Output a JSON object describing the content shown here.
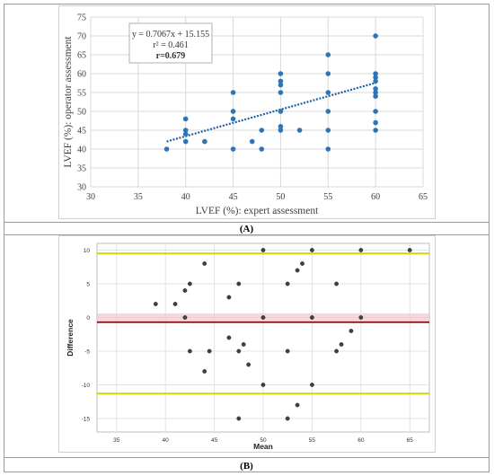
{
  "chart_data": [
    {
      "type": "scatter",
      "panel": "(A)",
      "xlabel": "LVEF (%): expert assessment",
      "ylabel": "LVEF (%): operator assessment",
      "xlim": [
        30,
        65
      ],
      "ylim": [
        30,
        75
      ],
      "xticks": [
        30,
        35,
        40,
        45,
        50,
        55,
        60,
        65
      ],
      "yticks": [
        30,
        35,
        40,
        45,
        50,
        55,
        60,
        65,
        70,
        75
      ],
      "grid": true,
      "point_color": "#2e75b6",
      "annotation": {
        "line1": "y = 0.7067x + 15.155",
        "line2": "r² = 0.461",
        "line3": "r=0.679"
      },
      "trendline": {
        "slope": 0.7067,
        "intercept": 15.155,
        "x_range": [
          38,
          60
        ],
        "style": "dotted"
      },
      "points": [
        [
          38,
          40
        ],
        [
          40,
          42
        ],
        [
          40,
          44
        ],
        [
          40,
          45
        ],
        [
          40,
          48
        ],
        [
          42,
          42
        ],
        [
          45,
          40
        ],
        [
          45,
          48
        ],
        [
          45,
          50
        ],
        [
          45,
          55
        ],
        [
          47,
          42
        ],
        [
          48,
          40
        ],
        [
          48,
          45
        ],
        [
          50,
          45
        ],
        [
          50,
          46
        ],
        [
          50,
          50
        ],
        [
          50,
          55
        ],
        [
          50,
          57
        ],
        [
          50,
          58
        ],
        [
          50,
          60
        ],
        [
          52,
          45
        ],
        [
          55,
          40
        ],
        [
          55,
          45
        ],
        [
          55,
          50
        ],
        [
          55,
          55
        ],
        [
          55,
          60
        ],
        [
          55,
          65
        ],
        [
          60,
          45
        ],
        [
          60,
          47
        ],
        [
          60,
          50
        ],
        [
          60,
          54
        ],
        [
          60,
          55
        ],
        [
          60,
          56
        ],
        [
          60,
          58
        ],
        [
          60,
          59
        ],
        [
          60,
          60
        ],
        [
          60,
          70
        ]
      ]
    },
    {
      "type": "scatter",
      "panel": "(B)",
      "xlabel": "Mean",
      "ylabel": "Difference",
      "xlim": [
        33,
        67
      ],
      "ylim": [
        -17,
        11
      ],
      "xticks": [
        35,
        40,
        45,
        50,
        55,
        60,
        65
      ],
      "yticks": [
        -15,
        -10,
        -5,
        0,
        5,
        10
      ],
      "grid": true,
      "point_color": "#404040",
      "mean_line": {
        "value": -0.7,
        "color": "#7a1010"
      },
      "limit_lines": {
        "upper": 9.5,
        "lower": -11.3,
        "color": "#d4d400"
      },
      "zero_band_color": "#f4c6cf",
      "points": [
        [
          39,
          2
        ],
        [
          41,
          2
        ],
        [
          42,
          4
        ],
        [
          42.5,
          5
        ],
        [
          42,
          0
        ],
        [
          42.5,
          -5
        ],
        [
          44,
          8
        ],
        [
          44,
          -8
        ],
        [
          44.5,
          -5
        ],
        [
          46.5,
          3
        ],
        [
          47.5,
          5
        ],
        [
          46.5,
          -3
        ],
        [
          48,
          -4
        ],
        [
          47.5,
          -5
        ],
        [
          48.5,
          -7
        ],
        [
          47.5,
          -15
        ],
        [
          50,
          10
        ],
        [
          50,
          0
        ],
        [
          50,
          -10
        ],
        [
          52.5,
          5
        ],
        [
          52.5,
          -5
        ],
        [
          52.5,
          -15
        ],
        [
          53.5,
          -13
        ],
        [
          53.5,
          7
        ],
        [
          54,
          8
        ],
        [
          55,
          10
        ],
        [
          55,
          0
        ],
        [
          55,
          -10
        ],
        [
          57.5,
          5
        ],
        [
          57.5,
          -5
        ],
        [
          58,
          -4
        ],
        [
          59,
          -2
        ],
        [
          60,
          10
        ],
        [
          60,
          0
        ],
        [
          65,
          10
        ]
      ]
    }
  ],
  "captions": {
    "a": "(A)",
    "b": "(B)"
  }
}
